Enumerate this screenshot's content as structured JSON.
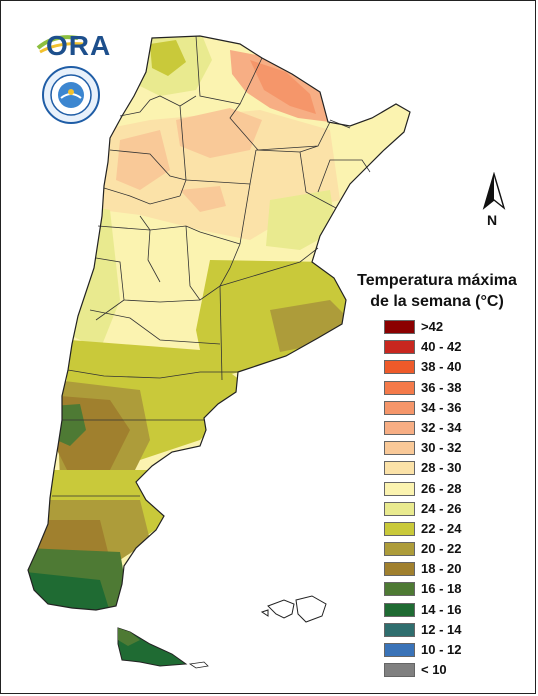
{
  "logo": {
    "text": "ORA"
  },
  "north_arrow": {
    "label": "N"
  },
  "legend": {
    "title_line1": "Temperatura máxima",
    "title_line2": "de la semana (°C)",
    "items": [
      {
        "label": ">42",
        "color": "#8b0000"
      },
      {
        "label": "40 - 42",
        "color": "#c8271f"
      },
      {
        "label": "38 - 40",
        "color": "#ee5a2a"
      },
      {
        "label": "36 - 38",
        "color": "#f47a4a"
      },
      {
        "label": "34 - 36",
        "color": "#f5966a"
      },
      {
        "label": "32 - 34",
        "color": "#f7ae84"
      },
      {
        "label": "30 - 32",
        "color": "#f9c998"
      },
      {
        "label": "28 - 30",
        "color": "#fbe2a8"
      },
      {
        "label": "26 - 28",
        "color": "#fbf3b0"
      },
      {
        "label": "24 - 26",
        "color": "#e9ea8f"
      },
      {
        "label": "22 - 24",
        "color": "#c9c93a"
      },
      {
        "label": "20 - 22",
        "color": "#ad9c3a"
      },
      {
        "label": "18 - 20",
        "color": "#a0802e"
      },
      {
        "label": "16 - 18",
        "color": "#4e7a34"
      },
      {
        "label": "14 - 16",
        "color": "#1f6b33"
      },
      {
        "label": "12 - 14",
        "color": "#2f6e6e"
      },
      {
        "label": "10 - 12",
        "color": "#3a73b8"
      },
      {
        "label": "< 10",
        "color": "#808080"
      }
    ]
  }
}
